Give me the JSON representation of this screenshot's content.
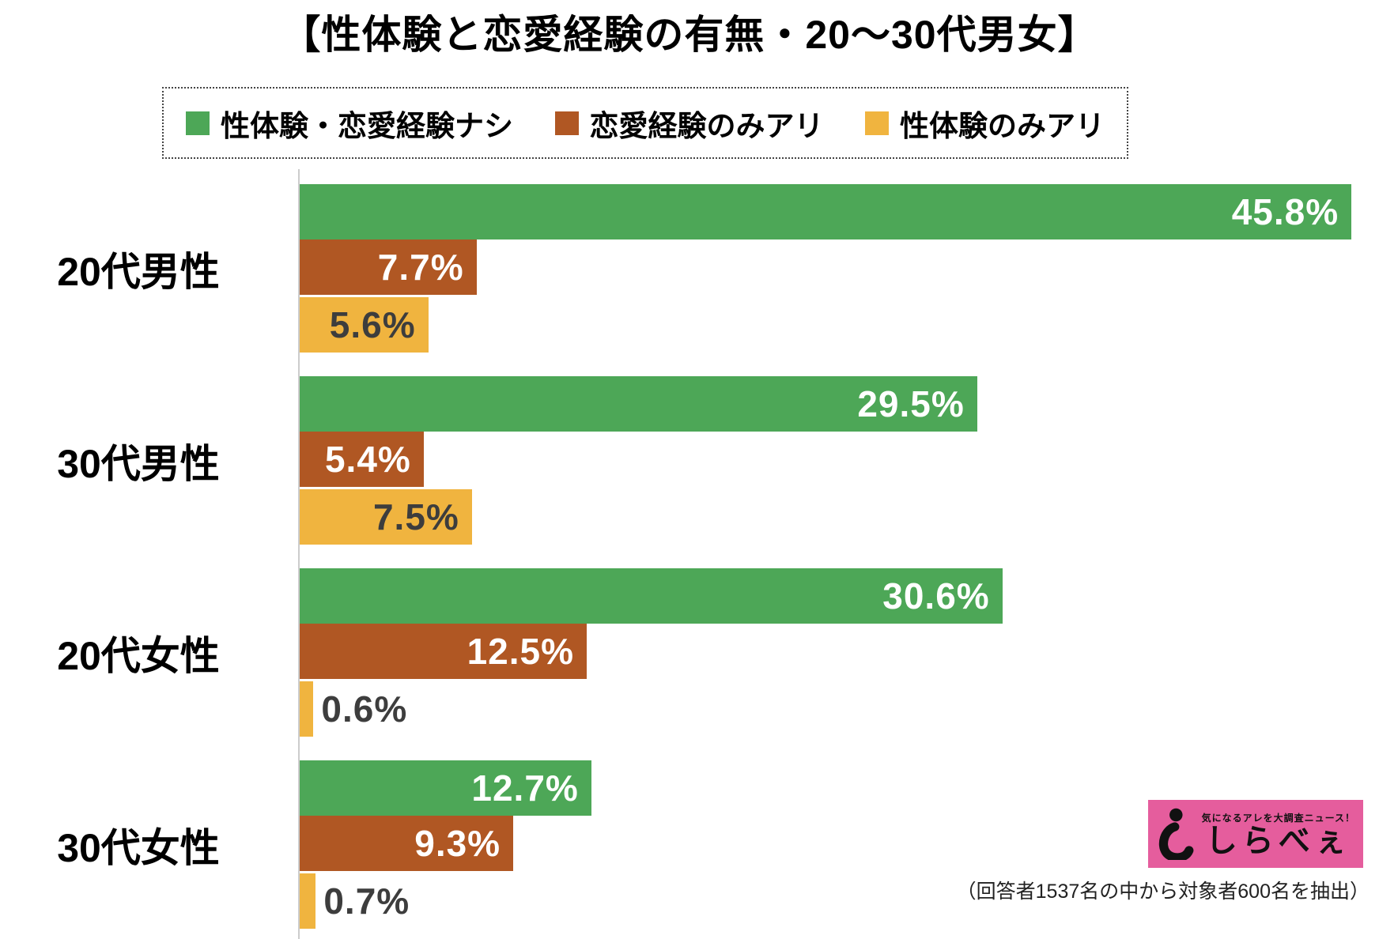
{
  "title": "【性体験と恋愛経験の有無・20〜30代男女】",
  "legend": [
    {
      "label": "性体験・恋愛経験ナシ",
      "color": "#4da757"
    },
    {
      "label": "恋愛経験のみアリ",
      "color": "#b05723"
    },
    {
      "label": "性体験のみアリ",
      "color": "#f0b43f"
    }
  ],
  "chart_data": {
    "type": "bar",
    "orientation": "horizontal",
    "title": "【性体験と恋愛経験の有無・20〜30代男女】",
    "categories": [
      "20代男性",
      "30代男性",
      "20代女性",
      "30代女性"
    ],
    "series": [
      {
        "name": "性体験・恋愛経験ナシ",
        "color": "#4da757",
        "label_color": "#ffffff",
        "values": [
          45.8,
          29.5,
          30.6,
          12.7
        ]
      },
      {
        "name": "恋愛経験のみアリ",
        "color": "#b05723",
        "label_color": "#ffffff",
        "values": [
          7.7,
          5.4,
          12.5,
          9.3
        ]
      },
      {
        "name": "性体験のみアリ",
        "color": "#f0b43f",
        "label_color": "#3d3d3d",
        "values": [
          5.6,
          7.5,
          0.6,
          0.7
        ]
      }
    ],
    "xlim": [
      0,
      47
    ],
    "value_suffix": "%",
    "outside_label_threshold": 2,
    "outside_label_color": "#3d3d3d",
    "grid": false,
    "legend_position": "top"
  },
  "logo": {
    "tagline": "気になるアレを大調査ニュース！",
    "name": "しらべぇ",
    "bg_color": "#e55d9d"
  },
  "caption": "（回答者1537名の中から対象者600名を抽出）"
}
